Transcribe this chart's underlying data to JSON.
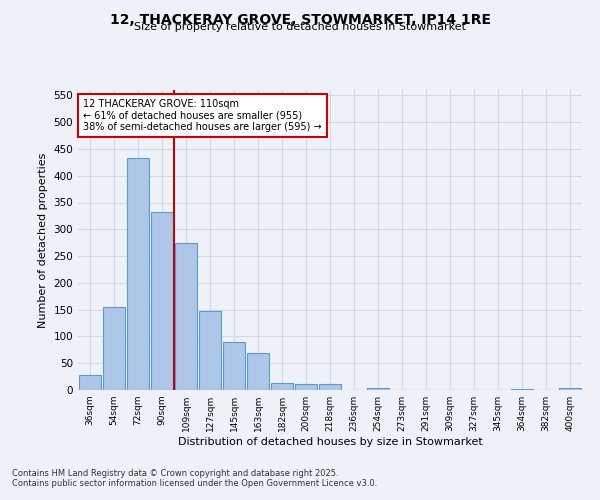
{
  "title1": "12, THACKERAY GROVE, STOWMARKET, IP14 1RE",
  "title2": "Size of property relative to detached houses in Stowmarket",
  "xlabel": "Distribution of detached houses by size in Stowmarket",
  "ylabel": "Number of detached properties",
  "bar_labels": [
    "36sqm",
    "54sqm",
    "72sqm",
    "90sqm",
    "109sqm",
    "127sqm",
    "145sqm",
    "163sqm",
    "182sqm",
    "200sqm",
    "218sqm",
    "236sqm",
    "254sqm",
    "273sqm",
    "291sqm",
    "309sqm",
    "327sqm",
    "345sqm",
    "364sqm",
    "382sqm",
    "400sqm"
  ],
  "bar_values": [
    28,
    155,
    433,
    333,
    275,
    148,
    90,
    70,
    13,
    11,
    11,
    0,
    3,
    0,
    0,
    0,
    0,
    0,
    2,
    0,
    4
  ],
  "bar_color": "#aec6e8",
  "bar_edge_color": "#5b9bd5",
  "vline_color": "#cc0000",
  "annotation_text": "12 THACKERAY GROVE: 110sqm\n← 61% of detached houses are smaller (955)\n38% of semi-detached houses are larger (595) →",
  "annotation_box_color": "#ffffff",
  "annotation_box_edge": "#cc0000",
  "ylim": [
    0,
    560
  ],
  "yticks": [
    0,
    50,
    100,
    150,
    200,
    250,
    300,
    350,
    400,
    450,
    500,
    550
  ],
  "grid_color": "#d0d8e8",
  "bg_color": "#eef2f8",
  "footnote1": "Contains HM Land Registry data © Crown copyright and database right 2025.",
  "footnote2": "Contains public sector information licensed under the Open Government Licence v3.0."
}
